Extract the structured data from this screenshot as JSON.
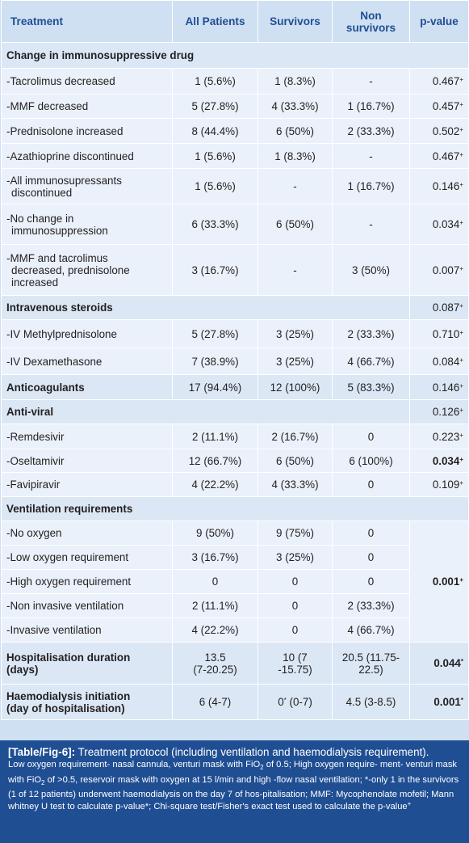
{
  "header": {
    "treatment": "Treatment",
    "all": "All Patients",
    "survivors": "Survivors",
    "non_survivors": "Non survivors",
    "pvalue": "p-value"
  },
  "rows": {
    "sec_immuno": "Change in immunosuppressive drug",
    "tac": {
      "label": "-Tacrolimus decreased",
      "all": "1 (5.6%)",
      "surv": "1 (8.3%)",
      "non": "-",
      "p": "0.467",
      "m": "+"
    },
    "mmf": {
      "label": "-MMF decreased",
      "all": "5 (27.8%)",
      "surv": "4 (33.3%)",
      "non": "1 (16.7%)",
      "p": "0.457",
      "m": "+"
    },
    "pred": {
      "label": "-Prednisolone increased",
      "all": "8 (44.4%)",
      "surv": "6 (50%)",
      "non": "2 (33.3%)",
      "p": "0.502",
      "m": "+"
    },
    "aza": {
      "label": "-Azathioprine discontinued",
      "all": "1 (5.6%)",
      "surv": "1 (8.3%)",
      "non": "-",
      "p": "0.467",
      "m": "+"
    },
    "allimm": {
      "label1": "-All immunosupressants",
      "label2": "discontinued",
      "all": "1 (5.6%)",
      "surv": "-",
      "non": "1 (16.7%)",
      "p": "0.146",
      "m": "+"
    },
    "nochg": {
      "label1": "-No change in",
      "label2": "immunosuppression",
      "all": "6 (33.3%)",
      "surv": "6 (50%)",
      "non": "-",
      "p": "0.034",
      "m": "+"
    },
    "mmftac": {
      "label1": "-MMF and tacrolimus",
      "label2": "decreased, prednisolone",
      "label3": "increased",
      "all": "3 (16.7%)",
      "surv": "-",
      "non": "3 (50%)",
      "p": "0.007",
      "m": "+"
    },
    "sec_iv": {
      "label": "Intravenous steroids",
      "p": "0.087",
      "m": "+"
    },
    "ivmp": {
      "label": "-IV Methylprednisolone",
      "all": "5 (27.8%)",
      "surv": "3 (25%)",
      "non": "2 (33.3%)",
      "p": "0.710",
      "m": "+"
    },
    "ivdex": {
      "label": "-IV Dexamethasone",
      "all": "7 (38.9%)",
      "surv": "3 (25%)",
      "non": "4 (66.7%)",
      "p": "0.084",
      "m": "+"
    },
    "anticoag": {
      "label": "Anticoagulants",
      "all": "17 (94.4%)",
      "surv": "12 (100%)",
      "non": "5 (83.3%)",
      "p": "0.146",
      "m": "+"
    },
    "sec_av": {
      "label": "Anti-viral",
      "p": "0.126",
      "m": "+"
    },
    "rem": {
      "label": "-Remdesivir",
      "all": "2 (11.1%)",
      "surv": "2 (16.7%)",
      "non": "0",
      "p": "0.223",
      "m": "+"
    },
    "osel": {
      "label": "-Oseltamivir",
      "all": "12 (66.7%)",
      "surv": "6 (50%)",
      "non": "6 (100%)",
      "p": "0.034",
      "m": "+"
    },
    "fav": {
      "label": "-Favipiravir",
      "all": "4 (22.2%)",
      "surv": "4 (33.3%)",
      "non": "0",
      "p": "0.109",
      "m": "+"
    },
    "sec_vent": "Ventilation requirements",
    "noox": {
      "label": "-No oxygen",
      "all": "9 (50%)",
      "surv": "9 (75%)",
      "non": "0"
    },
    "lowox": {
      "label": "-Low oxygen requirement",
      "all": "3 (16.7%)",
      "surv": "3 (25%)",
      "non": "0"
    },
    "highox": {
      "label": "-High oxygen requirement",
      "all": "0",
      "surv": "0",
      "non": "0"
    },
    "niv": {
      "label": "-Non invasive ventilation",
      "all": "2 (11.1%)",
      "surv": "0",
      "non": "2 (33.3%)"
    },
    "iv": {
      "label": "-Invasive ventilation",
      "all": "4 (22.2%)",
      "surv": "0",
      "non": "4 (66.7%)"
    },
    "vent_p": "0.001",
    "vent_m": "+",
    "hosp": {
      "label1": "Hospitalisation duration",
      "label2": "(days)",
      "all1": "13.5",
      "all2": "(7-20.25)",
      "surv1": "10 (7",
      "surv2": "-15.75)",
      "non1": "20.5 (11.75-",
      "non2": "22.5)",
      "p": "0.044",
      "m": "*"
    },
    "haemo": {
      "label1": "Haemodialysis initiation",
      "label2": "(day of hospitalisation)",
      "all": "6 (4-7)",
      "surv_a": "0",
      "surv_star": "*",
      "surv_b": " (0-7)",
      "non": "4.5 (3-8.5)",
      "p": "0.001",
      "m": "*"
    }
  },
  "caption": {
    "label": "[Table/Fig-6]:",
    "title": " Treatment protocol (including ventilation and haemodialysis requirement).",
    "t1": "Low oxygen requirement- nasal cannula, venturi mask with FiO",
    "sub2": "2",
    "t2": " of 0.5; High oxygen require-",
    "t3": "ment- venturi mask with FiO",
    "t4": " of >0.5, reservoir mask with oxygen at 15 l/min and high -flow nasal ventilation; *-only 1 in the survivors (1 of 12 patients) underwent haemodialysis on the day 7 of hos-pitalisation; MMF: Mycophenolate mofetil; Mann whitney U test to calculate p-value*; Chi-square test/Fisher's exact test used to calculate the p-value",
    "t4_mark": "+"
  }
}
